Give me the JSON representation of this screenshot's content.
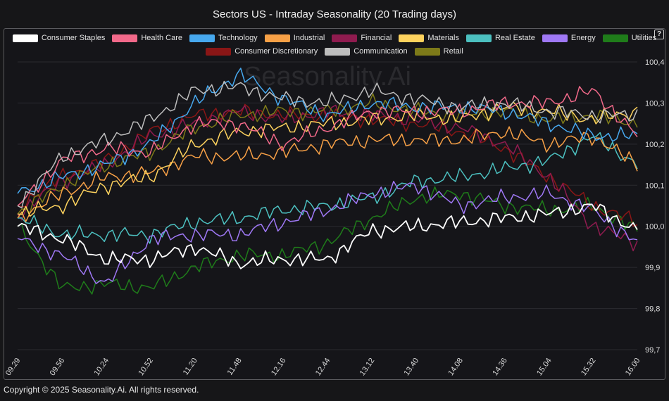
{
  "title": "Sectors US - Intraday Seasonality (20 Trading days)",
  "watermark": "Seasonality.Ai",
  "copyright": "Copyright © 2025 Seasonality.Ai. All rights reserved.",
  "help_icon": "?",
  "chart_data": {
    "type": "line",
    "x": [
      "09.29",
      "09.56",
      "10.24",
      "10.52",
      "11.20",
      "11.48",
      "12.16",
      "12.44",
      "13.12",
      "13.40",
      "14.08",
      "14.36",
      "15.04",
      "15.32",
      "16.00"
    ],
    "ylim": [
      99.7,
      100.4
    ],
    "yticks": [
      "99,7",
      "99,8",
      "99,9",
      "100,0",
      "100,1",
      "100,2",
      "100,3",
      "100,4"
    ],
    "grid": true,
    "legend_position": "top",
    "series": [
      {
        "name": "Consumer Staples",
        "color": "#ffffff",
        "values": [
          100.0,
          99.97,
          99.92,
          99.92,
          99.95,
          99.91,
          99.92,
          99.92,
          99.99,
          100.0,
          100.01,
          100.02,
          100.03,
          100.05,
          99.99
        ]
      },
      {
        "name": "Health Care",
        "color": "#f2698a",
        "values": [
          100.05,
          100.16,
          100.19,
          100.18,
          100.25,
          100.25,
          100.2,
          100.24,
          100.28,
          100.28,
          100.28,
          100.3,
          100.3,
          100.33,
          100.22
        ]
      },
      {
        "name": "Technology",
        "color": "#47a8ee",
        "values": [
          100.08,
          100.12,
          100.15,
          100.2,
          100.3,
          100.37,
          100.31,
          100.27,
          100.3,
          100.29,
          100.29,
          100.28,
          100.25,
          100.22,
          100.22
        ]
      },
      {
        "name": "Industrial",
        "color": "#f7a046",
        "values": [
          100.02,
          100.08,
          100.12,
          100.13,
          100.17,
          100.17,
          100.18,
          100.2,
          100.21,
          100.21,
          100.21,
          100.23,
          100.2,
          100.22,
          100.15
        ]
      },
      {
        "name": "Financial",
        "color": "#8f1b4f",
        "values": [
          100.03,
          100.11,
          100.15,
          100.22,
          100.25,
          100.28,
          100.26,
          100.28,
          100.27,
          100.26,
          100.24,
          100.2,
          100.12,
          100.0,
          99.96
        ]
      },
      {
        "name": "Materials",
        "color": "#fdd25e",
        "values": [
          100.03,
          100.05,
          100.1,
          100.12,
          100.2,
          100.23,
          100.24,
          100.25,
          100.26,
          100.27,
          100.26,
          100.29,
          100.28,
          100.26,
          100.28
        ]
      },
      {
        "name": "Real Estate",
        "color": "#4cc0c0",
        "values": [
          100.02,
          99.98,
          99.98,
          99.98,
          100.01,
          100.02,
          100.04,
          100.05,
          100.07,
          100.11,
          100.12,
          100.14,
          100.16,
          100.22,
          100.15
        ]
      },
      {
        "name": "Energy",
        "color": "#9f78f5",
        "values": [
          99.97,
          99.93,
          99.86,
          99.97,
          99.98,
          99.98,
          100.01,
          100.04,
          100.08,
          100.1,
          100.05,
          100.07,
          100.08,
          100.04,
          99.96
        ]
      },
      {
        "name": "Utilities",
        "color": "#1f7c1a",
        "values": [
          100.0,
          99.85,
          99.86,
          99.85,
          99.9,
          99.93,
          99.93,
          99.96,
          100.02,
          100.07,
          100.08,
          100.05,
          100.04,
          100.05,
          99.99
        ]
      },
      {
        "name": "Consumer Discretionary",
        "color": "#8a1616",
        "values": [
          100.05,
          100.12,
          100.16,
          100.23,
          100.27,
          100.28,
          100.27,
          100.27,
          100.26,
          100.25,
          100.23,
          100.19,
          100.12,
          100.05,
          100.01
        ]
      },
      {
        "name": "Communication",
        "color": "#bdbdbd",
        "values": [
          100.05,
          100.17,
          100.21,
          100.26,
          100.33,
          100.34,
          100.31,
          100.3,
          100.33,
          100.31,
          100.29,
          100.3,
          100.28,
          100.27,
          100.27
        ]
      },
      {
        "name": "Retail",
        "color": "#7d7a19",
        "values": [
          100.03,
          100.1,
          100.15,
          100.18,
          100.24,
          100.27,
          100.28,
          100.28,
          100.3,
          100.28,
          100.27,
          100.28,
          100.26,
          100.27,
          100.25
        ]
      }
    ]
  }
}
